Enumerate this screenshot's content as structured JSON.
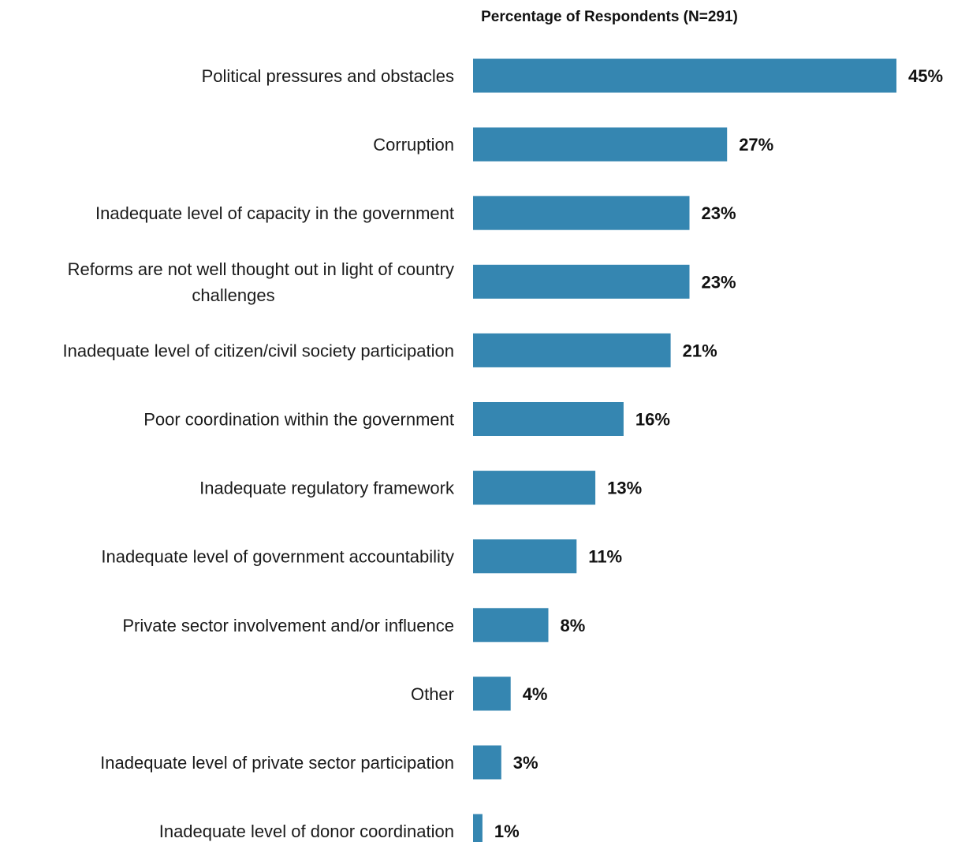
{
  "chart_data": {
    "type": "bar",
    "orientation": "horizontal",
    "title": "Percentage of Respondents (N=291)",
    "categories": [
      "Political pressures and obstacles",
      "Corruption",
      "Inadequate level of capacity in the government",
      "Reforms are not well thought out in light of country challenges",
      "Inadequate level of citizen/civil society participation",
      "Poor coordination within the government",
      "Inadequate regulatory framework",
      "Inadequate level of government accountability",
      "Private sector involvement and/or influence",
      "Other",
      "Inadequate level of private sector participation",
      "Inadequate level of donor coordination"
    ],
    "category_lines": [
      [
        "Political pressures and obstacles"
      ],
      [
        "Corruption"
      ],
      [
        "Inadequate level of capacity in the government"
      ],
      [
        "Reforms are not well thought out in light of country",
        "challenges"
      ],
      [
        "Inadequate level of citizen/civil society participation"
      ],
      [
        "Poor coordination within the government"
      ],
      [
        "Inadequate regulatory framework"
      ],
      [
        "Inadequate level of government accountability"
      ],
      [
        "Private sector involvement and/or influence"
      ],
      [
        "Other"
      ],
      [
        "Inadequate level of private sector participation"
      ],
      [
        "Inadequate level of donor coordination"
      ]
    ],
    "values": [
      45,
      27,
      23,
      23,
      21,
      16,
      13,
      11,
      8,
      4,
      3,
      1
    ],
    "value_labels": [
      "45%",
      "27%",
      "23%",
      "23%",
      "21%",
      "16%",
      "13%",
      "11%",
      "8%",
      "4%",
      "3%",
      "1%"
    ],
    "xlim": [
      0,
      45
    ],
    "xlabel": "",
    "ylabel": "",
    "grid": false,
    "legend": "none",
    "bar_color": "#3586b1"
  }
}
